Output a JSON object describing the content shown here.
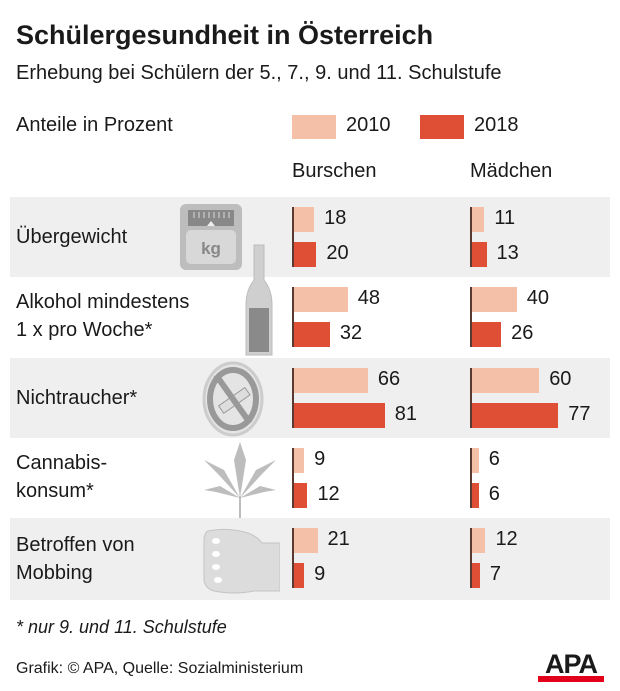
{
  "title": "Schülergesundheit in Österreich",
  "subtitle": "Erhebung bei Schülern der 5., 7., 9. und 11. Schulstufe",
  "footnote": "* nur 9. und 11. Schulstufe",
  "source": "Grafik: © APA, Quelle: Sozialministerium",
  "logo": "APA",
  "colors": {
    "2010": "#f5c0a8",
    "2018": "#de4f35",
    "band": "#efefef"
  },
  "chart_data": {
    "type": "bar",
    "orientation": "horizontal",
    "ylabel": "Anteile in Prozent",
    "legend": [
      "2010",
      "2018"
    ],
    "groups": [
      "Burschen",
      "Mädchen"
    ],
    "categories": [
      {
        "label": "Übergewicht",
        "icon": "scale-icon"
      },
      {
        "label": "Alkohol mindestens\n1 x pro Woche*",
        "icon": "bottle-icon"
      },
      {
        "label": "Nichtraucher*",
        "icon": "no-smoking-icon"
      },
      {
        "label": "Cannabis-\nkonsum*",
        "icon": "cannabis-leaf-icon"
      },
      {
        "label": "Betroffen von\nMobbing",
        "icon": "fist-icon"
      }
    ],
    "series": [
      {
        "name": "2010",
        "Burschen": [
          18,
          48,
          66,
          9,
          21
        ],
        "Mädchen": [
          11,
          40,
          60,
          6,
          12
        ]
      },
      {
        "name": "2018",
        "Burschen": [
          20,
          32,
          81,
          12,
          9
        ],
        "Mädchen": [
          13,
          26,
          77,
          6,
          7
        ]
      }
    ]
  }
}
